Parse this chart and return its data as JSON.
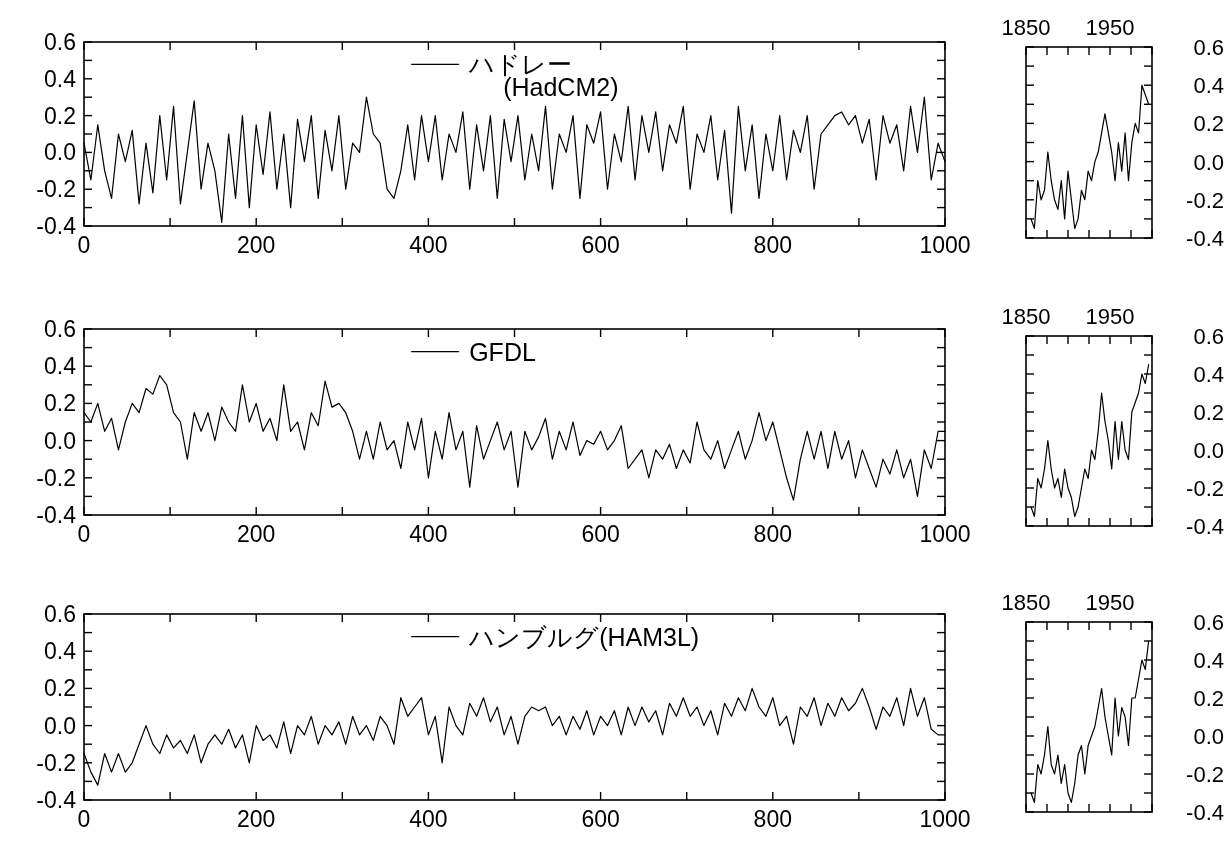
{
  "chart_data": [
    {
      "type": "line",
      "x": [
        0,
        8,
        16,
        24,
        32,
        40,
        48,
        56,
        64,
        72,
        80,
        88,
        96,
        104,
        112,
        120,
        128,
        136,
        144,
        152,
        160,
        168,
        176,
        184,
        192,
        200,
        208,
        216,
        224,
        232,
        240,
        248,
        256,
        264,
        272,
        280,
        288,
        296,
        304,
        312,
        320,
        328,
        336,
        344,
        352,
        360,
        368,
        376,
        384,
        392,
        400,
        408,
        416,
        424,
        432,
        440,
        448,
        456,
        464,
        472,
        480,
        488,
        496,
        504,
        512,
        520,
        528,
        536,
        544,
        552,
        560,
        568,
        576,
        584,
        592,
        600,
        608,
        616,
        624,
        632,
        640,
        648,
        656,
        664,
        672,
        680,
        688,
        696,
        704,
        712,
        720,
        728,
        736,
        744,
        752,
        760,
        768,
        776,
        784,
        792,
        800,
        808,
        816,
        824,
        832,
        840,
        848,
        856,
        864,
        872,
        880,
        888,
        896,
        904,
        912,
        920,
        928,
        936,
        944,
        952,
        960,
        968,
        976,
        984,
        992,
        1000
      ],
      "series": [
        {
          "name": "ハドレー\n(HadCM2)",
          "color": "#000000",
          "values": [
            0.05,
            -0.15,
            0.15,
            -0.1,
            -0.25,
            0.1,
            -0.05,
            0.12,
            -0.28,
            0.05,
            -0.22,
            0.2,
            -0.15,
            0.25,
            -0.28,
            0.0,
            0.28,
            -0.2,
            0.05,
            -0.1,
            -0.38,
            0.1,
            -0.25,
            0.2,
            -0.3,
            0.15,
            -0.12,
            0.22,
            -0.2,
            0.1,
            -0.3,
            0.18,
            -0.05,
            0.2,
            -0.25,
            0.12,
            -0.1,
            0.2,
            -0.2,
            0.05,
            0.0,
            0.3,
            0.1,
            0.05,
            -0.2,
            -0.25,
            -0.1,
            0.15,
            -0.15,
            0.2,
            -0.05,
            0.2,
            -0.15,
            0.1,
            0.0,
            0.22,
            -0.2,
            0.15,
            -0.1,
            0.2,
            -0.25,
            0.18,
            -0.05,
            0.2,
            -0.15,
            0.1,
            -0.1,
            0.25,
            -0.2,
            0.1,
            0.0,
            0.2,
            -0.25,
            0.15,
            0.05,
            0.22,
            -0.2,
            0.1,
            -0.05,
            0.25,
            -0.15,
            0.2,
            0.0,
            0.22,
            -0.1,
            0.15,
            0.05,
            0.25,
            -0.2,
            0.1,
            0.0,
            0.2,
            -0.15,
            0.12,
            -0.33,
            0.25,
            -0.1,
            0.15,
            -0.25,
            0.1,
            -0.1,
            0.2,
            -0.15,
            0.12,
            0.0,
            0.2,
            -0.2,
            0.1,
            0.15,
            0.2,
            0.22,
            0.15,
            0.2,
            0.05,
            0.18,
            -0.15,
            0.2,
            0.05,
            0.15,
            -0.1,
            0.25,
            0.0,
            0.3,
            -0.15,
            0.05,
            -0.05
          ]
        }
      ],
      "xlim": [
        0,
        1000
      ],
      "xticks": [
        0,
        {
          "value": 100,
          "label": null
        },
        200,
        {
          "value": 300,
          "label": null
        },
        400,
        {
          "value": 500,
          "label": null
        },
        600,
        {
          "value": 700,
          "label": null
        },
        800,
        {
          "value": 900,
          "label": null
        },
        1000
      ],
      "ylim": [
        -0.4,
        0.6
      ],
      "yticks": [
        {
          "value": -0.4,
          "label": "-0.4"
        },
        {
          "value": -0.3,
          "label": null
        },
        {
          "value": -0.2,
          "label": "-0.2"
        },
        {
          "value": -0.1,
          "label": null
        },
        {
          "value": 0,
          "label": "0.0"
        },
        {
          "value": 0.1,
          "label": null
        },
        {
          "value": 0.2,
          "label": "0.2"
        },
        {
          "value": 0.3,
          "label": null
        },
        {
          "value": 0.4,
          "label": "0.4"
        },
        {
          "value": 0.5,
          "label": null
        },
        {
          "value": 0.6,
          "label": "0.6"
        }
      ],
      "legend": "top"
    },
    {
      "type": "line",
      "x": [
        1856,
        1860,
        1864,
        1868,
        1872,
        1876,
        1880,
        1884,
        1888,
        1892,
        1896,
        1900,
        1904,
        1908,
        1912,
        1916,
        1920,
        1924,
        1928,
        1932,
        1936,
        1940,
        1944,
        1948,
        1952,
        1956,
        1960,
        1964,
        1968,
        1972,
        1976,
        1980,
        1984,
        1988,
        1992,
        1996
      ],
      "series": [
        {
          "color": "#000000",
          "values": [
            -0.3,
            -0.35,
            -0.1,
            -0.2,
            -0.15,
            0.05,
            -0.1,
            -0.2,
            -0.25,
            -0.1,
            -0.3,
            -0.05,
            -0.2,
            -0.35,
            -0.3,
            -0.15,
            -0.2,
            -0.05,
            -0.1,
            0.0,
            0.05,
            0.15,
            0.25,
            0.15,
            0.05,
            -0.1,
            0.1,
            -0.05,
            0.15,
            -0.1,
            0.1,
            0.2,
            0.15,
            0.4,
            0.35,
            0.3
          ]
        }
      ],
      "xlim": [
        1850,
        2000
      ],
      "xticks": [
        1850,
        {
          "value": 1875,
          "label": null
        },
        {
          "value": 1900,
          "label": null
        },
        {
          "value": 1925,
          "label": null
        },
        1950,
        {
          "value": 1975,
          "label": null
        },
        {
          "value": 2000,
          "label": null
        }
      ],
      "ylim": [
        -0.4,
        0.6
      ],
      "yticks": [
        {
          "value": -0.4,
          "label": "-0.4"
        },
        {
          "value": -0.3,
          "label": null
        },
        {
          "value": -0.2,
          "label": "-0.2"
        },
        {
          "value": -0.1,
          "label": null
        },
        {
          "value": 0,
          "label": "0.0"
        },
        {
          "value": 0.1,
          "label": null
        },
        {
          "value": 0.2,
          "label": "0.2"
        },
        {
          "value": 0.3,
          "label": null
        },
        {
          "value": 0.4,
          "label": "0.4"
        },
        {
          "value": 0.5,
          "label": null
        },
        {
          "value": 0.6,
          "label": "0.6"
        }
      ]
    },
    {
      "type": "line",
      "x": [
        0,
        8,
        16,
        24,
        32,
        40,
        48,
        56,
        64,
        72,
        80,
        88,
        96,
        104,
        112,
        120,
        128,
        136,
        144,
        152,
        160,
        168,
        176,
        184,
        192,
        200,
        208,
        216,
        224,
        232,
        240,
        248,
        256,
        264,
        272,
        280,
        288,
        296,
        304,
        312,
        320,
        328,
        336,
        344,
        352,
        360,
        368,
        376,
        384,
        392,
        400,
        408,
        416,
        424,
        432,
        440,
        448,
        456,
        464,
        472,
        480,
        488,
        496,
        504,
        512,
        520,
        528,
        536,
        544,
        552,
        560,
        568,
        576,
        584,
        592,
        600,
        608,
        616,
        624,
        632,
        640,
        648,
        656,
        664,
        672,
        680,
        688,
        696,
        704,
        712,
        720,
        728,
        736,
        744,
        752,
        760,
        768,
        776,
        784,
        792,
        800,
        808,
        816,
        824,
        832,
        840,
        848,
        856,
        864,
        872,
        880,
        888,
        896,
        904,
        912,
        920,
        928,
        936,
        944,
        952,
        960,
        968,
        976,
        984,
        992,
        1000
      ],
      "series": [
        {
          "name": "GFDL",
          "color": "#000000",
          "values": [
            0.15,
            0.1,
            0.2,
            0.05,
            0.12,
            -0.05,
            0.1,
            0.2,
            0.15,
            0.28,
            0.25,
            0.35,
            0.3,
            0.15,
            0.1,
            -0.1,
            0.15,
            0.05,
            0.15,
            0.0,
            0.18,
            0.1,
            0.05,
            0.3,
            0.1,
            0.2,
            0.05,
            0.12,
            0.0,
            0.3,
            0.05,
            0.1,
            -0.05,
            0.15,
            0.08,
            0.32,
            0.18,
            0.2,
            0.15,
            0.05,
            -0.1,
            0.05,
            -0.1,
            0.1,
            -0.05,
            0.0,
            -0.15,
            0.1,
            -0.05,
            0.12,
            -0.2,
            0.05,
            -0.1,
            0.15,
            -0.05,
            0.05,
            -0.25,
            0.08,
            -0.1,
            0.0,
            0.1,
            -0.05,
            0.05,
            -0.25,
            0.05,
            -0.05,
            0.02,
            0.12,
            -0.1,
            0.05,
            -0.05,
            0.1,
            -0.08,
            0.0,
            -0.02,
            0.05,
            -0.05,
            0.0,
            0.08,
            -0.15,
            -0.1,
            -0.05,
            -0.2,
            -0.05,
            -0.1,
            -0.02,
            -0.15,
            -0.05,
            -0.12,
            0.1,
            -0.05,
            -0.1,
            0.0,
            -0.15,
            -0.05,
            0.05,
            -0.1,
            0.0,
            0.15,
            0.0,
            0.1,
            -0.05,
            -0.2,
            -0.32,
            -0.1,
            0.05,
            -0.1,
            0.05,
            -0.15,
            0.05,
            -0.1,
            0.0,
            -0.2,
            -0.05,
            -0.15,
            -0.25,
            -0.1,
            -0.18,
            -0.05,
            -0.2,
            -0.1,
            -0.3,
            -0.05,
            -0.15,
            0.05,
            0.05
          ]
        }
      ],
      "xlim": [
        0,
        1000
      ],
      "xticks": [
        0,
        {
          "value": 100,
          "label": null
        },
        200,
        {
          "value": 300,
          "label": null
        },
        400,
        {
          "value": 500,
          "label": null
        },
        600,
        {
          "value": 700,
          "label": null
        },
        800,
        {
          "value": 900,
          "label": null
        },
        1000
      ],
      "ylim": [
        -0.4,
        0.6
      ],
      "yticks": [
        {
          "value": -0.4,
          "label": "-0.4"
        },
        {
          "value": -0.3,
          "label": null
        },
        {
          "value": -0.2,
          "label": "-0.2"
        },
        {
          "value": -0.1,
          "label": null
        },
        {
          "value": 0,
          "label": "0.0"
        },
        {
          "value": 0.1,
          "label": null
        },
        {
          "value": 0.2,
          "label": "0.2"
        },
        {
          "value": 0.3,
          "label": null
        },
        {
          "value": 0.4,
          "label": "0.4"
        },
        {
          "value": 0.5,
          "label": null
        },
        {
          "value": 0.6,
          "label": "0.6"
        }
      ],
      "legend": "top"
    },
    {
      "type": "line",
      "x": [
        1856,
        1860,
        1864,
        1868,
        1872,
        1876,
        1880,
        1884,
        1888,
        1892,
        1896,
        1900,
        1904,
        1908,
        1912,
        1916,
        1920,
        1924,
        1928,
        1932,
        1936,
        1940,
        1944,
        1948,
        1952,
        1956,
        1960,
        1964,
        1968,
        1972,
        1976,
        1980,
        1984,
        1988,
        1992,
        1996
      ],
      "series": [
        {
          "color": "#000000",
          "values": [
            -0.3,
            -0.35,
            -0.15,
            -0.2,
            -0.1,
            0.05,
            -0.1,
            -0.2,
            -0.15,
            -0.25,
            -0.1,
            -0.2,
            -0.25,
            -0.35,
            -0.3,
            -0.2,
            -0.1,
            -0.15,
            0.0,
            -0.05,
            0.1,
            0.3,
            0.15,
            0.05,
            -0.1,
            0.15,
            -0.05,
            0.15,
            0.0,
            -0.05,
            0.2,
            0.25,
            0.3,
            0.4,
            0.35,
            0.45
          ]
        }
      ],
      "xlim": [
        1850,
        2000
      ],
      "xticks": [
        1850,
        {
          "value": 1875,
          "label": null
        },
        {
          "value": 1900,
          "label": null
        },
        {
          "value": 1925,
          "label": null
        },
        1950,
        {
          "value": 1975,
          "label": null
        },
        {
          "value": 2000,
          "label": null
        }
      ],
      "ylim": [
        -0.4,
        0.6
      ],
      "yticks": [
        {
          "value": -0.4,
          "label": "-0.4"
        },
        {
          "value": -0.3,
          "label": null
        },
        {
          "value": -0.2,
          "label": "-0.2"
        },
        {
          "value": -0.1,
          "label": null
        },
        {
          "value": 0,
          "label": "0.0"
        },
        {
          "value": 0.1,
          "label": null
        },
        {
          "value": 0.2,
          "label": "0.2"
        },
        {
          "value": 0.3,
          "label": null
        },
        {
          "value": 0.4,
          "label": "0.4"
        },
        {
          "value": 0.5,
          "label": null
        },
        {
          "value": 0.6,
          "label": "0.6"
        }
      ]
    },
    {
      "type": "line",
      "x": [
        0,
        8,
        16,
        24,
        32,
        40,
        48,
        56,
        64,
        72,
        80,
        88,
        96,
        104,
        112,
        120,
        128,
        136,
        144,
        152,
        160,
        168,
        176,
        184,
        192,
        200,
        208,
        216,
        224,
        232,
        240,
        248,
        256,
        264,
        272,
        280,
        288,
        296,
        304,
        312,
        320,
        328,
        336,
        344,
        352,
        360,
        368,
        376,
        384,
        392,
        400,
        408,
        416,
        424,
        432,
        440,
        448,
        456,
        464,
        472,
        480,
        488,
        496,
        504,
        512,
        520,
        528,
        536,
        544,
        552,
        560,
        568,
        576,
        584,
        592,
        600,
        608,
        616,
        624,
        632,
        640,
        648,
        656,
        664,
        672,
        680,
        688,
        696,
        704,
        712,
        720,
        728,
        736,
        744,
        752,
        760,
        768,
        776,
        784,
        792,
        800,
        808,
        816,
        824,
        832,
        840,
        848,
        856,
        864,
        872,
        880,
        888,
        896,
        904,
        912,
        920,
        928,
        936,
        944,
        952,
        960,
        968,
        976,
        984,
        992,
        1000
      ],
      "series": [
        {
          "name": "ハンブルグ(HAM3L)",
          "color": "#000000",
          "values": [
            -0.15,
            -0.25,
            -0.32,
            -0.15,
            -0.25,
            -0.15,
            -0.25,
            -0.2,
            -0.1,
            0.0,
            -0.1,
            -0.15,
            -0.05,
            -0.12,
            -0.08,
            -0.15,
            -0.05,
            -0.2,
            -0.1,
            -0.05,
            -0.1,
            -0.02,
            -0.12,
            -0.05,
            -0.2,
            0.0,
            -0.08,
            -0.05,
            -0.12,
            0.02,
            -0.15,
            0.0,
            -0.05,
            0.05,
            -0.1,
            0.0,
            -0.05,
            0.02,
            -0.1,
            0.05,
            -0.05,
            0.0,
            -0.08,
            0.05,
            0.0,
            -0.1,
            0.15,
            0.05,
            0.1,
            0.15,
            -0.05,
            0.05,
            -0.2,
            0.1,
            0.0,
            -0.05,
            0.12,
            0.05,
            0.15,
            0.02,
            0.1,
            -0.05,
            0.05,
            -0.1,
            0.05,
            0.1,
            0.08,
            0.1,
            0.0,
            0.05,
            -0.05,
            0.05,
            -0.02,
            0.08,
            -0.05,
            0.05,
            0.0,
            0.08,
            -0.05,
            0.1,
            0.0,
            0.1,
            0.02,
            0.08,
            -0.05,
            0.12,
            0.05,
            0.15,
            0.05,
            0.1,
            0.0,
            0.08,
            -0.05,
            0.12,
            0.05,
            0.15,
            0.08,
            0.2,
            0.1,
            0.05,
            0.15,
            0.0,
            0.05,
            -0.1,
            0.1,
            0.05,
            0.15,
            0.0,
            0.12,
            0.05,
            0.15,
            0.08,
            0.12,
            0.2,
            0.1,
            -0.02,
            0.1,
            0.05,
            0.15,
            0.0,
            0.2,
            0.05,
            0.15,
            -0.02,
            -0.05,
            -0.05
          ]
        }
      ],
      "xlim": [
        0,
        1000
      ],
      "xticks": [
        0,
        {
          "value": 100,
          "label": null
        },
        200,
        {
          "value": 300,
          "label": null
        },
        400,
        {
          "value": 500,
          "label": null
        },
        600,
        {
          "value": 700,
          "label": null
        },
        800,
        {
          "value": 900,
          "label": null
        },
        1000
      ],
      "ylim": [
        -0.4,
        0.6
      ],
      "yticks": [
        {
          "value": -0.4,
          "label": "-0.4"
        },
        {
          "value": -0.3,
          "label": null
        },
        {
          "value": -0.2,
          "label": "-0.2"
        },
        {
          "value": -0.1,
          "label": null
        },
        {
          "value": 0,
          "label": "0.0"
        },
        {
          "value": 0.1,
          "label": null
        },
        {
          "value": 0.2,
          "label": "0.2"
        },
        {
          "value": 0.3,
          "label": null
        },
        {
          "value": 0.4,
          "label": "0.4"
        },
        {
          "value": 0.5,
          "label": null
        },
        {
          "value": 0.6,
          "label": "0.6"
        }
      ],
      "legend": "top"
    },
    {
      "type": "line",
      "x": [
        1856,
        1860,
        1864,
        1868,
        1872,
        1876,
        1880,
        1884,
        1888,
        1892,
        1896,
        1900,
        1904,
        1908,
        1912,
        1916,
        1920,
        1924,
        1928,
        1932,
        1936,
        1940,
        1944,
        1948,
        1952,
        1956,
        1960,
        1964,
        1968,
        1972,
        1976,
        1980,
        1984,
        1988,
        1992,
        1996
      ],
      "series": [
        {
          "color": "#000000",
          "values": [
            -0.3,
            -0.35,
            -0.15,
            -0.2,
            -0.1,
            0.05,
            -0.15,
            -0.2,
            -0.1,
            -0.25,
            -0.15,
            -0.3,
            -0.35,
            -0.25,
            -0.1,
            -0.05,
            -0.2,
            -0.05,
            0.0,
            0.05,
            0.15,
            0.25,
            0.1,
            0.0,
            -0.1,
            0.2,
            0.0,
            0.15,
            0.1,
            -0.05,
            0.2,
            0.2,
            0.3,
            0.4,
            0.35,
            0.5
          ]
        }
      ],
      "xlim": [
        1850,
        2000
      ],
      "xticks": [
        1850,
        {
          "value": 1875,
          "label": null
        },
        {
          "value": 1900,
          "label": null
        },
        {
          "value": 1925,
          "label": null
        },
        1950,
        {
          "value": 1975,
          "label": null
        },
        {
          "value": 2000,
          "label": null
        }
      ],
      "ylim": [
        -0.4,
        0.6
      ],
      "yticks": [
        {
          "value": -0.4,
          "label": "-0.4"
        },
        {
          "value": -0.3,
          "label": null
        },
        {
          "value": -0.2,
          "label": "-0.2"
        },
        {
          "value": -0.1,
          "label": null
        },
        {
          "value": 0,
          "label": "0.0"
        },
        {
          "value": 0.1,
          "label": null
        },
        {
          "value": 0.2,
          "label": "0.2"
        },
        {
          "value": 0.3,
          "label": null
        },
        {
          "value": 0.4,
          "label": "0.4"
        },
        {
          "value": 0.5,
          "label": null
        },
        {
          "value": 0.6,
          "label": "0.6"
        }
      ]
    }
  ]
}
